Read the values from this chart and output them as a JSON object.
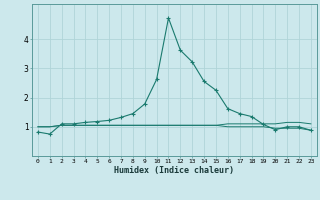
{
  "xlabel": "Humidex (Indice chaleur)",
  "bg_color": "#cce8ec",
  "grid_color": "#b0d4d8",
  "line_color": "#1a7a6e",
  "x": [
    0,
    1,
    2,
    3,
    4,
    5,
    6,
    7,
    8,
    9,
    10,
    11,
    12,
    13,
    14,
    15,
    16,
    17,
    18,
    19,
    20,
    21,
    22,
    23
  ],
  "y_main": [
    0.82,
    0.75,
    1.1,
    1.1,
    1.15,
    1.18,
    1.22,
    1.32,
    1.45,
    1.78,
    2.62,
    4.72,
    3.62,
    3.22,
    2.55,
    2.25,
    1.62,
    1.45,
    1.35,
    1.08,
    0.9,
    1.0,
    1.0,
    0.88
  ],
  "y_line1": [
    1.0,
    1.0,
    1.05,
    1.05,
    1.05,
    1.05,
    1.05,
    1.05,
    1.05,
    1.05,
    1.05,
    1.05,
    1.05,
    1.05,
    1.05,
    1.05,
    1.1,
    1.1,
    1.1,
    1.1,
    1.1,
    1.15,
    1.15,
    1.1
  ],
  "y_line2": [
    1.0,
    1.0,
    1.05,
    1.05,
    1.05,
    1.05,
    1.05,
    1.05,
    1.05,
    1.05,
    1.05,
    1.05,
    1.05,
    1.05,
    1.05,
    1.05,
    1.0,
    1.0,
    1.0,
    1.0,
    0.95,
    0.95,
    0.95,
    0.88
  ],
  "xlim": [
    -0.5,
    23.5
  ],
  "ylim": [
    0,
    5.2
  ],
  "yticks": [
    1,
    2,
    3,
    4
  ],
  "ytick_labels": [
    "1",
    "2",
    "3",
    "4"
  ],
  "xticks": [
    0,
    1,
    2,
    3,
    4,
    5,
    6,
    7,
    8,
    9,
    10,
    11,
    12,
    13,
    14,
    15,
    16,
    17,
    18,
    19,
    20,
    21,
    22,
    23
  ],
  "xtick_labels": [
    "0",
    "1",
    "2",
    "3",
    "4",
    "5",
    "6",
    "7",
    "8",
    "9",
    "10",
    "11",
    "12",
    "13",
    "14",
    "15",
    "16",
    "17",
    "18",
    "19",
    "20",
    "21",
    "22",
    "23"
  ]
}
